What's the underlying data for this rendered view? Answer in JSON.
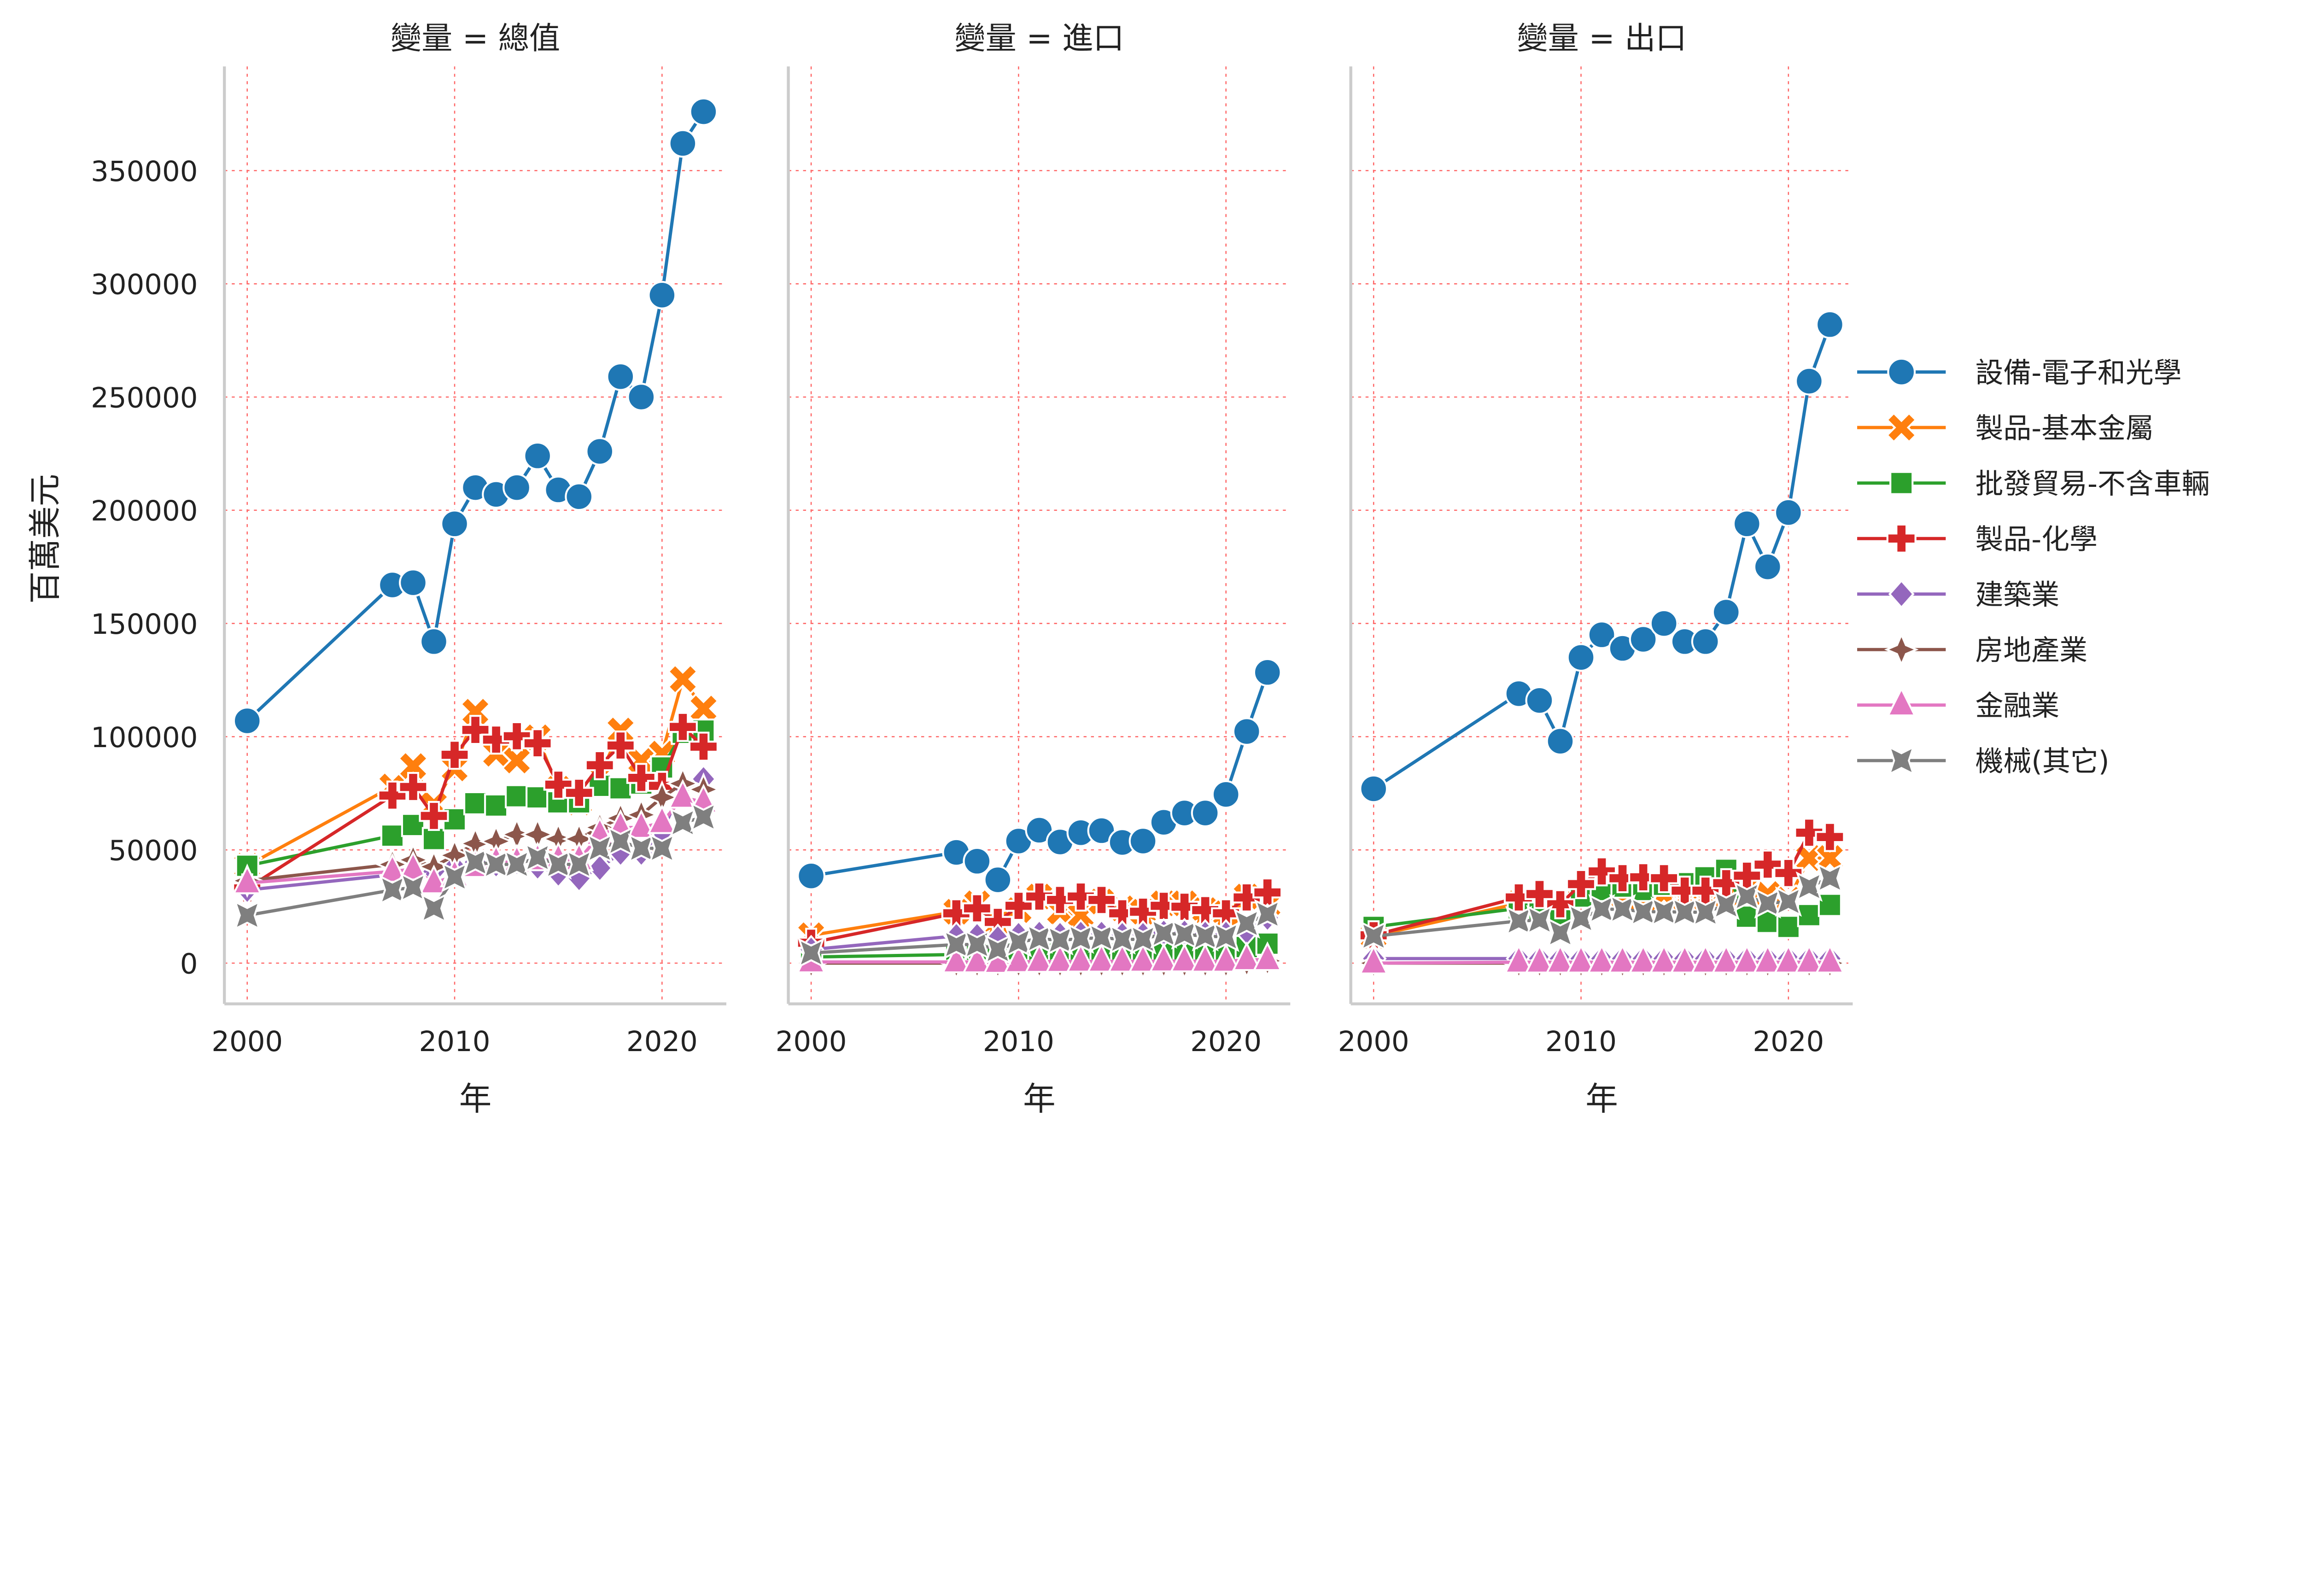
{
  "legend": {
    "labels": [
      "設備-電子和光學",
      "製品-基本金屬",
      "批發貿易-不含車輛",
      "製品-化學",
      "建築業",
      "房地產業",
      "金融業",
      "機械(其它)"
    ],
    "colors": [
      "#1f77b4",
      "#ff7f0e",
      "#2ca02c",
      "#d62728",
      "#9467bd",
      "#8c564b",
      "#e377c2",
      "#7f7f7f"
    ],
    "markers": [
      "circle",
      "x",
      "square",
      "plus",
      "diamond",
      "thin-diamond",
      "triangle",
      "star"
    ],
    "placement": "right"
  },
  "axes": {
    "ylabel": "百萬美元",
    "xlabel": "年",
    "yticks": [
      0,
      50000,
      100000,
      150000,
      200000,
      250000,
      300000,
      350000
    ],
    "ylim": [
      -18000,
      396000
    ],
    "xticks": [
      2000,
      2010,
      2020
    ],
    "xlim": [
      1998.9,
      2023.1
    ],
    "grid": true,
    "grid_color": "#ff6666"
  },
  "chart_data": [
    {
      "type": "line",
      "title": "變量 = 總值",
      "x": [
        2000,
        2007,
        2008,
        2009,
        2010,
        2011,
        2012,
        2013,
        2014,
        2015,
        2016,
        2017,
        2018,
        2019,
        2020,
        2021,
        2022
      ],
      "series": [
        {
          "name": "設備-電子和光學",
          "values": [
            107000,
            167000,
            168000,
            142000,
            194000,
            210000,
            207000,
            210000,
            224000,
            209000,
            206000,
            226000,
            259000,
            250000,
            295000,
            362000,
            376000
          ]
        },
        {
          "name": "製品-基本金屬",
          "values": [
            43000,
            78000,
            87000,
            70000,
            86000,
            111000,
            92500,
            89500,
            99700,
            77000,
            71000,
            83000,
            102700,
            89500,
            92500,
            125400,
            112400
          ]
        },
        {
          "name": "批發貿易-不含車輛",
          "values": [
            43000,
            56300,
            61000,
            54800,
            63500,
            70600,
            69600,
            73700,
            73200,
            71000,
            71000,
            78300,
            77200,
            79300,
            86400,
            101700,
            102700
          ]
        },
        {
          "name": "製品-化學",
          "values": [
            33000,
            74000,
            77800,
            65000,
            92000,
            103000,
            98700,
            100200,
            97100,
            78800,
            75200,
            87400,
            96100,
            81800,
            78300,
            104300,
            95600
          ]
        },
        {
          "name": "建築業",
          "values": [
            32300,
            39000,
            40500,
            40500,
            42600,
            44600,
            43600,
            44600,
            42600,
            39500,
            37500,
            42000,
            48700,
            48700,
            57900,
            78300,
            81300
          ]
        },
        {
          "name": "房地產業",
          "values": [
            36400,
            43600,
            45600,
            42600,
            47600,
            52800,
            53800,
            56800,
            56800,
            54800,
            54800,
            59900,
            64000,
            65500,
            73200,
            79300,
            76700
          ]
        },
        {
          "name": "金融業",
          "values": [
            35400,
            40500,
            41500,
            35400,
            38500,
            42600,
            44600,
            44600,
            45600,
            45600,
            45600,
            56800,
            59900,
            59900,
            62000,
            73200,
            71100
          ]
        },
        {
          "name": "機械(其它)",
          "values": [
            21100,
            32300,
            33400,
            24200,
            38000,
            44600,
            43600,
            43600,
            46600,
            43600,
            43600,
            50700,
            53800,
            50700,
            50700,
            62000,
            64500
          ]
        }
      ]
    },
    {
      "type": "line",
      "title": "變量 = 進口",
      "x": [
        2000,
        2007,
        2008,
        2009,
        2010,
        2011,
        2012,
        2013,
        2014,
        2015,
        2016,
        2017,
        2018,
        2019,
        2020,
        2021,
        2022
      ],
      "series": [
        {
          "name": "設備-電子和光學",
          "values": [
            38500,
            48900,
            45000,
            36800,
            53900,
            58700,
            53500,
            57600,
            58500,
            53300,
            53900,
            62200,
            66300,
            66300,
            74500,
            102300,
            128400
          ]
        },
        {
          "name": "製品-基本金屬",
          "values": [
            12300,
            22700,
            26400,
            17500,
            23400,
            29400,
            22700,
            21200,
            27200,
            24200,
            22700,
            26400,
            26400,
            23400,
            22000,
            29400,
            25700
          ]
        },
        {
          "name": "批發貿易-不含車輛",
          "values": [
            2700,
            3800,
            4200,
            4200,
            4200,
            4200,
            4200,
            4200,
            4200,
            4200,
            4200,
            4200,
            4200,
            4200,
            4200,
            7100,
            8600
          ]
        },
        {
          "name": "製品-化學",
          "values": [
            9000,
            22000,
            24200,
            18200,
            25300,
            29400,
            27900,
            29400,
            27900,
            22000,
            22700,
            25300,
            24900,
            23400,
            22000,
            29000,
            31200
          ]
        },
        {
          "name": "建築業",
          "values": [
            6000,
            12000,
            12000,
            11000,
            12500,
            13000,
            12500,
            13000,
            13000,
            12500,
            12500,
            13500,
            13500,
            13000,
            13000,
            14000,
            20000
          ]
        },
        {
          "name": "房地產業",
          "values": [
            0,
            0,
            0,
            0,
            0,
            0,
            0,
            0,
            0,
            0,
            0,
            0,
            0,
            0,
            0,
            500,
            1000
          ]
        },
        {
          "name": "金融業",
          "values": [
            500,
            500,
            500,
            300,
            600,
            700,
            700,
            800,
            800,
            800,
            800,
            900,
            900,
            800,
            800,
            1500,
            1500
          ]
        },
        {
          "name": "機械(其它)",
          "values": [
            4500,
            8200,
            8200,
            6000,
            9300,
            10800,
            10100,
            10800,
            11200,
            10500,
            10500,
            13100,
            12700,
            11900,
            11600,
            17500,
            21600
          ]
        }
      ]
    },
    {
      "type": "line",
      "title": "變量 = 出口",
      "x": [
        2000,
        2007,
        2008,
        2009,
        2010,
        2011,
        2012,
        2013,
        2014,
        2015,
        2016,
        2017,
        2018,
        2019,
        2020,
        2021,
        2022
      ],
      "series": [
        {
          "name": "設備-電子和光學",
          "values": [
            77000,
            119000,
            116000,
            98000,
            135000,
            145000,
            139000,
            143000,
            150000,
            142000,
            142000,
            155000,
            194000,
            175000,
            199000,
            257000,
            282000
          ]
        },
        {
          "name": "製品-基本金屬",
          "values": [
            12000,
            26400,
            26000,
            23400,
            28000,
            30900,
            30000,
            27900,
            30500,
            28600,
            28600,
            30100,
            33800,
            30500,
            28000,
            46400,
            46400
          ]
        },
        {
          "name": "批發貿易-不含車輛",
          "values": [
            16000,
            24200,
            24000,
            21200,
            29400,
            32300,
            33800,
            32300,
            34600,
            35300,
            37900,
            41200,
            20500,
            18200,
            16000,
            21200,
            25700
          ]
        },
        {
          "name": "製品-化學",
          "values": [
            12300,
            29000,
            30500,
            26000,
            34900,
            40500,
            37500,
            37900,
            37500,
            32000,
            32000,
            35300,
            38600,
            43500,
            39800,
            57600,
            55700
          ]
        },
        {
          "name": "建築業",
          "values": [
            2000,
            2000,
            2000,
            2000,
            2000,
            2000,
            2000,
            2000,
            2000,
            2000,
            2000,
            2000,
            2000,
            2000,
            2000,
            2000,
            2000
          ]
        },
        {
          "name": "房地產業",
          "values": [
            0,
            0,
            0,
            0,
            0,
            0,
            0,
            0,
            0,
            0,
            0,
            0,
            0,
            0,
            0,
            0,
            0
          ]
        },
        {
          "name": "金融業",
          "values": [
            0,
            400,
            400,
            400,
            400,
            400,
            400,
            400,
            400,
            400,
            400,
            400,
            400,
            400,
            400,
            400,
            400
          ]
        },
        {
          "name": "機械(其它)",
          "values": [
            11900,
            18600,
            19000,
            13400,
            19700,
            23800,
            23800,
            22700,
            22700,
            22500,
            22500,
            25700,
            29400,
            26400,
            27200,
            33800,
            37500
          ]
        }
      ]
    }
  ]
}
